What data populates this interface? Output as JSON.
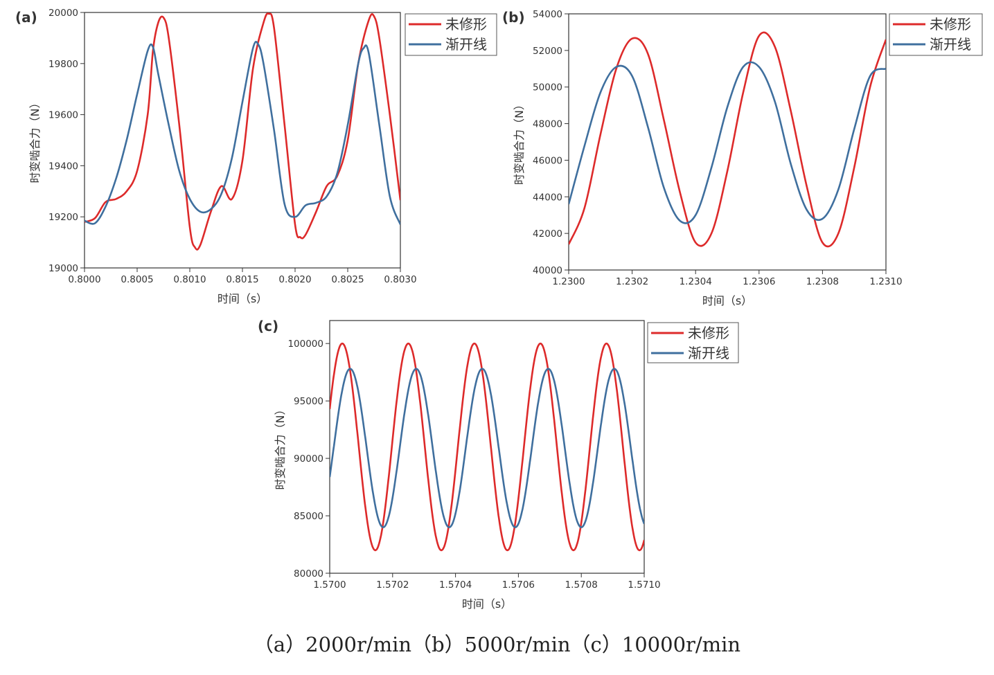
{
  "caption": "（a）2000r/min（b）5000r/min（c）10000r/min",
  "colors": {
    "red": "#dd2a2a",
    "blue": "#3f6f9e",
    "axis": "#333333"
  },
  "chart_data": [
    {
      "type": "line",
      "panel_label": "(a)",
      "xlabel": "时间（s）",
      "ylabel": "时变啮合力（N）",
      "xlim": [
        0.8,
        0.803
      ],
      "ylim": [
        19000,
        20000
      ],
      "xticks": [
        "0.8000",
        "0.8005",
        "0.8010",
        "0.8015",
        "0.8020",
        "0.8025",
        "0.8030"
      ],
      "yticks": [
        "19000",
        "19200",
        "19400",
        "19600",
        "19800",
        "20000"
      ],
      "legend_position": "outside-top-right",
      "series": [
        {
          "name": "未修形",
          "color": "#dd2a2a",
          "x": [
            0.8,
            0.8001,
            0.8002,
            0.8003,
            0.8004,
            0.8005,
            0.8006,
            0.80065,
            0.8007,
            0.80075,
            0.8008,
            0.8009,
            0.801,
            0.80105,
            0.8011,
            0.8012,
            0.8013,
            0.8014,
            0.8015,
            0.8016,
            0.8017,
            0.80175,
            0.8018,
            0.8019,
            0.802,
            0.80205,
            0.8021,
            0.8022,
            0.8023,
            0.8024,
            0.8025,
            0.8026,
            0.8027,
            0.80275,
            0.8028,
            0.8029,
            0.803
          ],
          "y": [
            19180,
            19195,
            19258,
            19270,
            19300,
            19380,
            19600,
            19850,
            19960,
            19980,
            19900,
            19560,
            19160,
            19080,
            19090,
            19220,
            19320,
            19270,
            19420,
            19780,
            19960,
            19995,
            19940,
            19560,
            19170,
            19120,
            19130,
            19220,
            19320,
            19360,
            19500,
            19800,
            19970,
            19985,
            19900,
            19600,
            19265
          ]
        },
        {
          "name": "渐开线",
          "color": "#3f6f9e",
          "x": [
            0.8,
            0.8001,
            0.8002,
            0.8003,
            0.8004,
            0.8005,
            0.8006,
            0.80065,
            0.8007,
            0.8008,
            0.8009,
            0.801,
            0.8011,
            0.8012,
            0.8013,
            0.8014,
            0.8015,
            0.8016,
            0.80165,
            0.8017,
            0.8018,
            0.8019,
            0.802,
            0.8021,
            0.8022,
            0.8023,
            0.8024,
            0.8025,
            0.8026,
            0.80265,
            0.8027,
            0.8028,
            0.8029,
            0.803
          ],
          "y": [
            19185,
            19175,
            19240,
            19350,
            19500,
            19680,
            19850,
            19865,
            19760,
            19560,
            19380,
            19270,
            19220,
            19230,
            19290,
            19430,
            19650,
            19860,
            19875,
            19800,
            19540,
            19250,
            19200,
            19245,
            19255,
            19280,
            19370,
            19560,
            19800,
            19860,
            19840,
            19560,
            19280,
            19170
          ]
        }
      ]
    },
    {
      "type": "line",
      "panel_label": "(b)",
      "xlabel": "时间（s）",
      "ylabel": "时变啮合力（N）",
      "xlim": [
        1.23,
        1.231
      ],
      "ylim": [
        40000,
        54000
      ],
      "xticks": [
        "1.2300",
        "1.2302",
        "1.2304",
        "1.2306",
        "1.2308",
        "1.2310"
      ],
      "yticks": [
        "40000",
        "42000",
        "44000",
        "46000",
        "48000",
        "50000",
        "52000",
        "54000"
      ],
      "legend_position": "outside-top-right",
      "series": [
        {
          "name": "未修形",
          "color": "#dd2a2a",
          "x": [
            1.23,
            1.23005,
            1.2301,
            1.23015,
            1.2302,
            1.23025,
            1.2303,
            1.23035,
            1.2304,
            1.23045,
            1.2305,
            1.23055,
            1.2306,
            1.23065,
            1.2307,
            1.23075,
            1.2308,
            1.23085,
            1.2309,
            1.23095,
            1.231
          ],
          "y": [
            41400,
            43400,
            47400,
            51000,
            52650,
            51800,
            48200,
            44300,
            41500,
            42000,
            45400,
            49700,
            52800,
            52200,
            48700,
            44600,
            41500,
            42000,
            45600,
            50000,
            52600
          ]
        },
        {
          "name": "渐开线",
          "color": "#3f6f9e",
          "x": [
            1.23,
            1.23005,
            1.2301,
            1.23015,
            1.2302,
            1.23025,
            1.2303,
            1.23035,
            1.2304,
            1.23045,
            1.2305,
            1.23055,
            1.2306,
            1.23065,
            1.2307,
            1.23075,
            1.2308,
            1.23085,
            1.2309,
            1.23095,
            1.231
          ],
          "y": [
            43600,
            46800,
            49700,
            51100,
            50600,
            47800,
            44500,
            42700,
            43000,
            45600,
            48900,
            51100,
            51100,
            49200,
            45800,
            43300,
            42800,
            44400,
            47700,
            50600,
            51000
          ]
        }
      ]
    },
    {
      "type": "line",
      "panel_label": "(c)",
      "xlabel": "时间（s）",
      "ylabel": "时变啮合力（N）",
      "xlim": [
        1.57,
        1.571
      ],
      "ylim": [
        80000,
        102000
      ],
      "xticks": [
        "1.5700",
        "1.5702",
        "1.5704",
        "1.5706",
        "1.5708",
        "1.5710"
      ],
      "yticks": [
        "80000",
        "85000",
        "90000",
        "95000",
        "100000"
      ],
      "legend_position": "outside-top-right",
      "series": [
        {
          "name": "未修形",
          "color": "#dd2a2a",
          "amplitude": 9000,
          "offset": 91000,
          "period": 0.00021,
          "phase_peak": 1.57004,
          "x_end": 1.571,
          "note_tail": 85900
        },
        {
          "name": "渐开线",
          "color": "#3f6f9e",
          "amplitude": 6900,
          "offset": 90900,
          "period": 0.00021,
          "phase_peak": 1.570065,
          "x_end": 1.571
        }
      ]
    }
  ]
}
